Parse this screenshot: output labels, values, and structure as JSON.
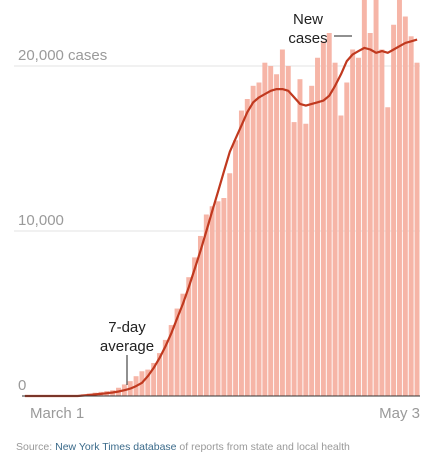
{
  "chart_data": {
    "type": "bar",
    "x_start_label": "March 1",
    "x_end_label": "May 3",
    "ylim": [
      0,
      24000
    ],
    "y_ticks": [
      {
        "value": 0,
        "label": "0"
      },
      {
        "value": 10000,
        "label": "10,000"
      },
      {
        "value": 20000,
        "label": "20,000 cases"
      }
    ],
    "annotations": {
      "new_cases": [
        "New",
        "cases"
      ],
      "average": [
        "7-day",
        "average"
      ]
    },
    "series": [
      {
        "name": "New cases",
        "values": [
          0,
          0,
          0,
          0,
          0,
          0,
          0,
          0,
          0,
          0,
          100,
          150,
          200,
          250,
          300,
          350,
          500,
          700,
          900,
          1200,
          1500,
          1600,
          2000,
          2600,
          3400,
          4300,
          5300,
          6200,
          7200,
          8400,
          9700,
          11000,
          11500,
          11800,
          12000,
          13500,
          15500,
          17300,
          18000,
          18800,
          19000,
          20200,
          20000,
          19500,
          21000,
          20000,
          16600,
          19200,
          16500,
          18800,
          20500,
          21500,
          22000,
          20200,
          17000,
          19000,
          21000,
          20500,
          25000,
          22000,
          24000,
          21000,
          17500,
          22500,
          26000,
          23000,
          21800,
          20200
        ]
      },
      {
        "name": "7-day average",
        "values": [
          0,
          0,
          0,
          0,
          0,
          0,
          0,
          0,
          0,
          0,
          30,
          60,
          100,
          130,
          170,
          210,
          270,
          350,
          450,
          600,
          800,
          1200,
          1700,
          2300,
          3000,
          3800,
          4700,
          5600,
          6600,
          7700,
          8800,
          10000,
          11200,
          12400,
          13600,
          14800,
          15600,
          16400,
          17200,
          17800,
          18100,
          18300,
          18500,
          18600,
          18600,
          18500,
          18100,
          17700,
          17600,
          17700,
          17800,
          17900,
          18200,
          18800,
          19500,
          20300,
          20700,
          20900,
          21100,
          21000,
          20800,
          20900,
          20800,
          21000,
          21200,
          21400,
          21500,
          21600
        ]
      }
    ]
  },
  "source": {
    "prefix": "Source: ",
    "link": "New York Times database",
    "suffix": " of reports from state and local health"
  }
}
